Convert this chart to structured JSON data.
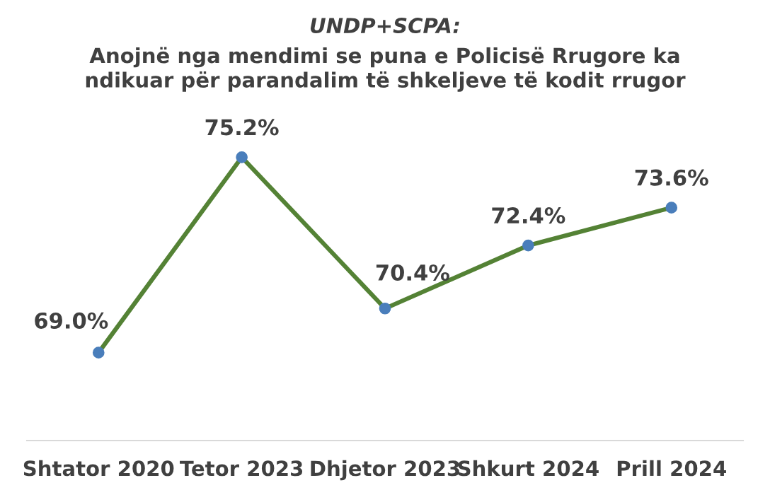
{
  "chart_data": {
    "type": "line",
    "title": "UNDP+SCPA:",
    "subtitle": "Anojnë nga mendimi se puna e Policisë Rrugore ka\nndikuar për parandalim të shkeljeve të kodit rrugor",
    "categories": [
      "Shtator 2020",
      "Tetor 2023",
      "Dhjetor 2023",
      "Shkurt 2024",
      "Prill 2024"
    ],
    "series": [
      {
        "color": "#548235",
        "values": [
          69.0,
          75.2,
          70.4,
          72.4,
          73.6
        ],
        "value_labels": [
          "69.0%",
          "75.2%",
          "70.4%",
          "72.4%",
          "73.6%"
        ]
      }
    ],
    "tick_labels": "x",
    "marker": "circle",
    "grid": false,
    "legend": false
  }
}
